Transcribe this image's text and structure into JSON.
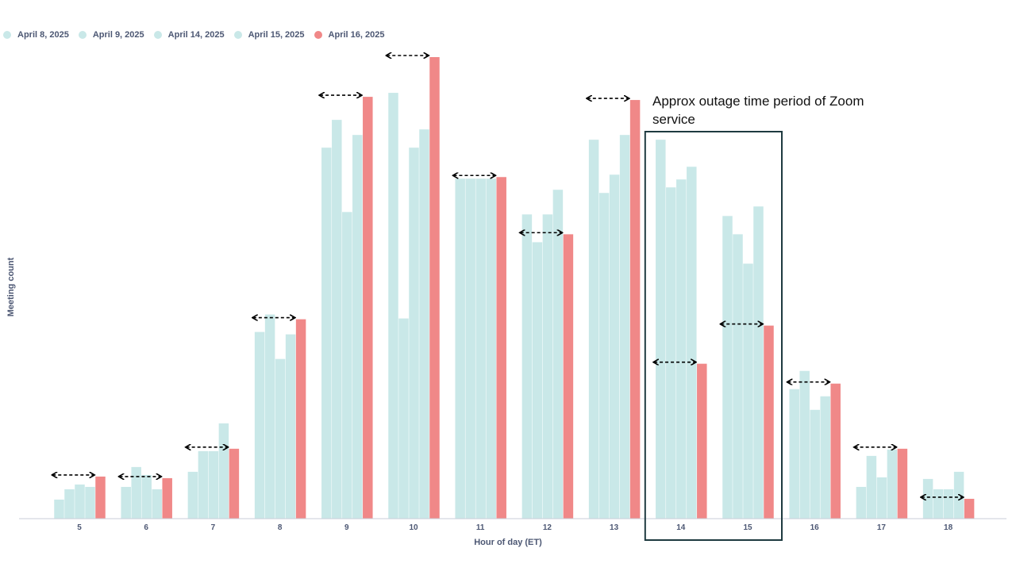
{
  "colors": {
    "light_series": "#c9e8e8",
    "highlight_series": "#f08888",
    "axis": "#c8ced8",
    "box": "#1e3a40",
    "arrow": "#000000"
  },
  "legend": [
    {
      "label": "April 8, 2025",
      "color": "#c9e8e8"
    },
    {
      "label": "April 9, 2025",
      "color": "#c9e8e8"
    },
    {
      "label": "April 14, 2025",
      "color": "#c9e8e8"
    },
    {
      "label": "April 15, 2025",
      "color": "#c9e8e8"
    },
    {
      "label": "April 16, 2025",
      "color": "#f08888"
    }
  ],
  "annotation": {
    "text": "Approx outage time period of Zoom service",
    "box_hours": [
      "14",
      "15"
    ]
  },
  "chart_data": {
    "type": "bar",
    "xlabel": "Hour of day (ET)",
    "ylabel": "Meeting count",
    "ylim": [
      0,
      580
    ],
    "y_ticks_shown": false,
    "grid": false,
    "legend_position": "top-left",
    "categories": [
      "5",
      "6",
      "7",
      "8",
      "9",
      "10",
      "11",
      "12",
      "13",
      "14",
      "15",
      "16",
      "17",
      "18"
    ],
    "series": [
      {
        "name": "April 8, 2025",
        "values": [
          24,
          40,
          59,
          235,
          467,
          536,
          428,
          383,
          477,
          477,
          381,
          163,
          40,
          50
        ]
      },
      {
        "name": "April 9, 2025",
        "values": [
          37,
          65,
          85,
          257,
          502,
          252,
          428,
          348,
          410,
          417,
          358,
          186,
          79,
          37
        ]
      },
      {
        "name": "April 14, 2025",
        "values": [
          43,
          55,
          85,
          201,
          386,
          467,
          428,
          383,
          433,
          427,
          321,
          137,
          52,
          37
        ]
      },
      {
        "name": "April 15, 2025",
        "values": [
          40,
          37,
          120,
          232,
          483,
          490,
          428,
          414,
          483,
          443,
          393,
          154,
          87,
          59
        ]
      },
      {
        "name": "April 16, 2025",
        "values": [
          53,
          51,
          88,
          251,
          531,
          581,
          430,
          358,
          527,
          195,
          243,
          170,
          88,
          25
        ]
      }
    ],
    "comparison_arrows_show_value": [
      53,
      51,
      88,
      251,
      531,
      581,
      430,
      358,
      527,
      195,
      243,
      170,
      88,
      25
    ]
  }
}
